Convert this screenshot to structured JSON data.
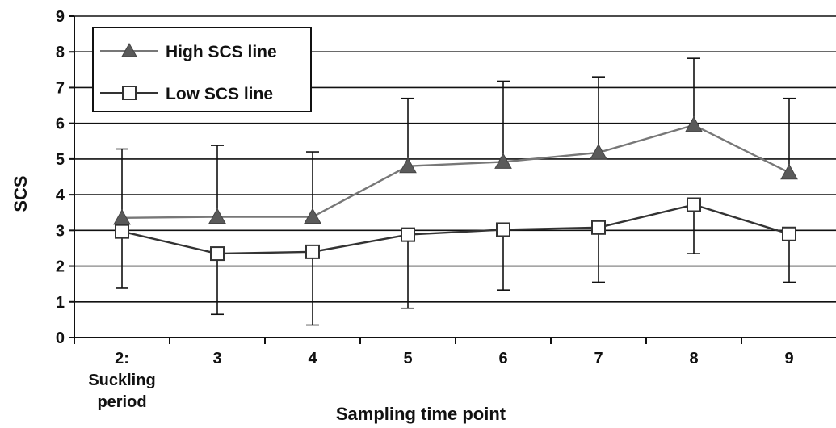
{
  "chart_data": {
    "type": "line",
    "title": "",
    "xlabel": "Sampling time point",
    "ylabel": "SCS",
    "ylim": [
      0,
      9
    ],
    "yticks": [
      "0",
      "1",
      "2",
      "3",
      "4",
      "5",
      "6",
      "7",
      "8",
      "9"
    ],
    "grid": "horizontal",
    "legend_position": "top-left",
    "categories": [
      [
        "2:",
        "Suckling",
        "period"
      ],
      [
        "3"
      ],
      [
        "4"
      ],
      [
        "5"
      ],
      [
        "6"
      ],
      [
        "7"
      ],
      [
        "8"
      ],
      [
        "9"
      ]
    ],
    "series": [
      {
        "name": "High SCS line",
        "marker": "triangle-filled",
        "line_color": "#777777",
        "marker_color": "#5a5a5a",
        "values": [
          3.35,
          3.38,
          3.38,
          4.8,
          4.92,
          5.18,
          5.95,
          4.62
        ],
        "error_upper": [
          5.28,
          5.38,
          5.2,
          6.7,
          7.18,
          7.3,
          7.82,
          6.7
        ]
      },
      {
        "name": "Low SCS line",
        "marker": "square-open",
        "line_color": "#333333",
        "marker_color": "#ffffff",
        "values": [
          2.97,
          2.35,
          2.4,
          2.88,
          3.02,
          3.08,
          3.72,
          2.9
        ],
        "error_lower": [
          1.38,
          0.65,
          0.35,
          0.82,
          1.33,
          1.55,
          2.35,
          1.55
        ]
      }
    ]
  }
}
